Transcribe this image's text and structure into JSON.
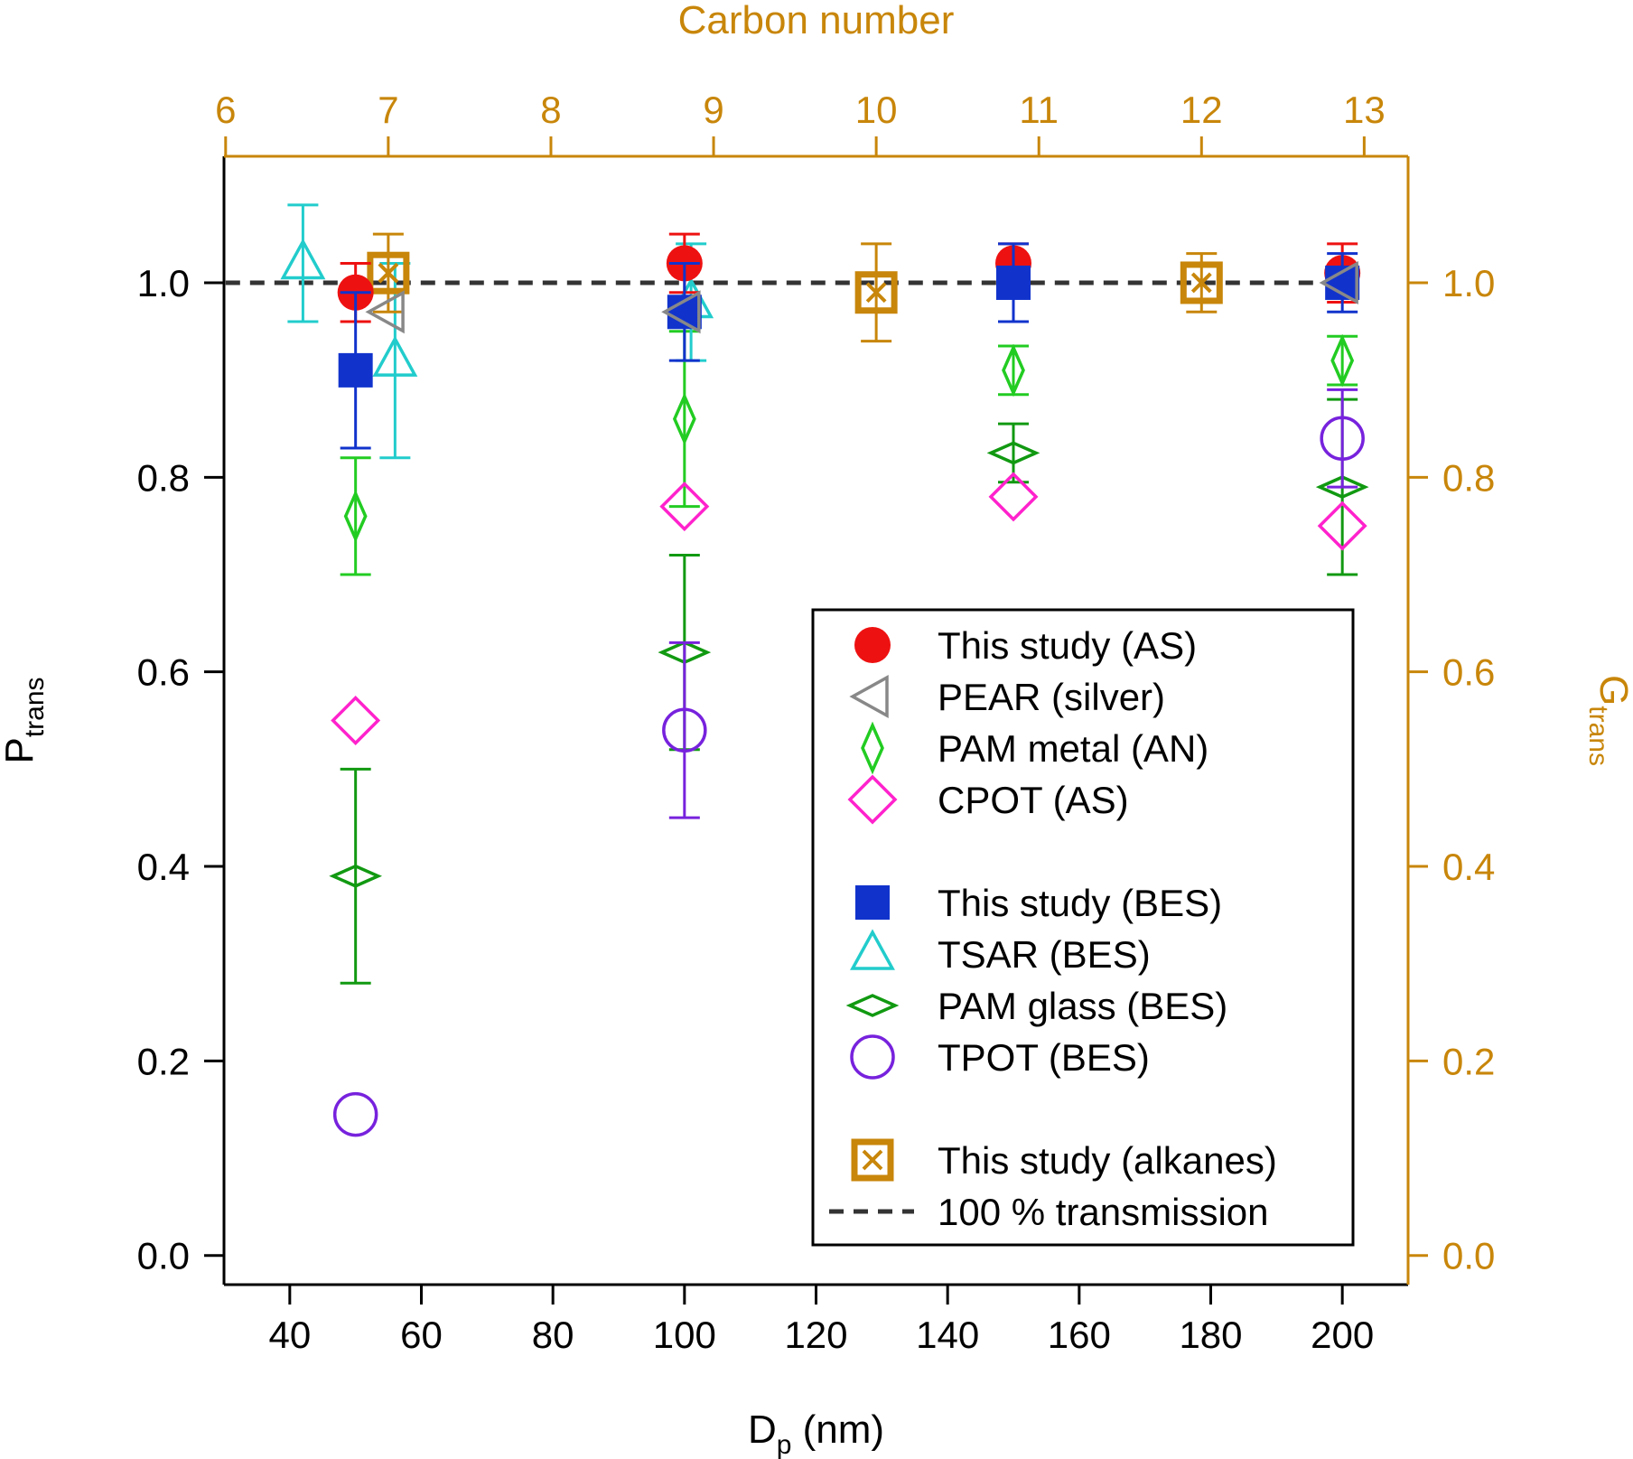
{
  "colors": {
    "axis_left": "#000000",
    "axis_right": "#C8860A",
    "legend_border": "#000000"
  },
  "chart_data": {
    "type": "scatter",
    "x_axis": {
      "label_main": "D",
      "label_sub": "p",
      "label_tail": " (nm)",
      "range": [
        30,
        210
      ],
      "ticks": [
        40,
        60,
        80,
        100,
        120,
        140,
        160,
        180,
        200
      ],
      "tick_labels": [
        "40",
        "60",
        "80",
        "100",
        "120",
        "140",
        "160",
        "180",
        "200"
      ]
    },
    "x2_axis": {
      "label": "Carbon number",
      "range": [
        5.99,
        13.27
      ],
      "ticks": [
        6,
        7,
        8,
        9,
        10,
        11,
        12,
        13
      ],
      "tick_labels": [
        "6",
        "7",
        "8",
        "9",
        "10",
        "11",
        "12",
        "13"
      ]
    },
    "y_axis": {
      "label_main": "P",
      "label_sub": "trans",
      "range": [
        -0.03,
        1.13
      ],
      "ticks": [
        0.0,
        0.2,
        0.4,
        0.6,
        0.8,
        1.0
      ],
      "tick_labels": [
        "0.0",
        "0.2",
        "0.4",
        "0.6",
        "0.8",
        "1.0"
      ]
    },
    "y2_axis": {
      "label_main": "G",
      "label_sub": "trans",
      "range": [
        -0.03,
        1.13
      ],
      "ticks": [
        0.0,
        0.2,
        0.4,
        0.6,
        0.8,
        1.0
      ],
      "tick_labels": [
        "0.0",
        "0.2",
        "0.4",
        "0.6",
        "0.8",
        "1.0"
      ]
    },
    "reference_line": {
      "y": 1.0,
      "name": "100 % transmission",
      "color": "#333333"
    },
    "series": [
      {
        "name": "This study (AS)",
        "marker": "filled-circle",
        "color": "#EE1111",
        "x_axis": "x",
        "points": [
          {
            "x": 50,
            "y": 0.99,
            "err": 0.03
          },
          {
            "x": 100,
            "y": 1.02,
            "err": 0.03
          },
          {
            "x": 150,
            "y": 1.02,
            "err": 0.02
          },
          {
            "x": 200,
            "y": 1.01,
            "err": 0.03
          }
        ]
      },
      {
        "name": "PEAR (silver)",
        "marker": "open-triangle-left",
        "color": "#888888",
        "x_axis": "x",
        "points": [
          {
            "x": 55,
            "y": 0.97,
            "err": 0
          },
          {
            "x": 100,
            "y": 0.97,
            "err": 0
          },
          {
            "x": 200,
            "y": 1.0,
            "err": 0
          }
        ]
      },
      {
        "name": "PAM metal (AN)",
        "marker": "open-thin-diamond",
        "color": "#22CC22",
        "x_axis": "x",
        "points": [
          {
            "x": 50,
            "y": 0.76,
            "err": 0.06
          },
          {
            "x": 100,
            "y": 0.86,
            "err": 0.09
          },
          {
            "x": 150,
            "y": 0.91,
            "err": 0.025
          },
          {
            "x": 200,
            "y": 0.92,
            "err": 0.025
          }
        ]
      },
      {
        "name": "CPOT (AS)",
        "marker": "open-diamond",
        "color": "#FF22CC",
        "x_axis": "x",
        "points": [
          {
            "x": 50,
            "y": 0.55,
            "err": 0
          },
          {
            "x": 100,
            "y": 0.77,
            "err": 0
          },
          {
            "x": 150,
            "y": 0.78,
            "err": 0
          },
          {
            "x": 200,
            "y": 0.75,
            "err": 0
          }
        ]
      },
      {
        "name": "This study (BES)",
        "marker": "filled-square",
        "color": "#1133CC",
        "x_axis": "x",
        "points": [
          {
            "x": 50,
            "y": 0.91,
            "err": 0.08
          },
          {
            "x": 100,
            "y": 0.97,
            "err": 0.05
          },
          {
            "x": 150,
            "y": 1.0,
            "err": 0.04
          },
          {
            "x": 200,
            "y": 1.0,
            "err": 0.03
          }
        ]
      },
      {
        "name": "TSAR (BES)",
        "marker": "open-triangle-up",
        "color": "#22CCCC",
        "x_axis": "x",
        "points": [
          {
            "x": 42,
            "y": 1.02,
            "err": 0.06
          },
          {
            "x": 56,
            "y": 0.92,
            "err": 0.1
          },
          {
            "x": 101,
            "y": 0.98,
            "err": 0.06
          }
        ]
      },
      {
        "name": "PAM glass (BES)",
        "marker": "open-flat-diamond",
        "color": "#119911",
        "x_axis": "x",
        "points": [
          {
            "x": 50,
            "y": 0.39,
            "err": 0.11
          },
          {
            "x": 100,
            "y": 0.62,
            "err": 0.1
          },
          {
            "x": 150,
            "y": 0.825,
            "err": 0.03
          },
          {
            "x": 200,
            "y": 0.79,
            "err": 0.09
          }
        ]
      },
      {
        "name": "TPOT (BES)",
        "marker": "open-circle",
        "color": "#7722DD",
        "x_axis": "x",
        "points": [
          {
            "x": 50,
            "y": 0.145,
            "err": 0
          },
          {
            "x": 100,
            "y": 0.54,
            "err": 0.09
          },
          {
            "x": 200,
            "y": 0.84,
            "err": 0.05
          }
        ]
      },
      {
        "name": "This study (alkanes)",
        "marker": "boxed-x-square",
        "color": "#C8860A",
        "x_axis": "x2",
        "points": [
          {
            "x": 7,
            "y": 1.01,
            "err": 0.04
          },
          {
            "x": 10,
            "y": 0.99,
            "err": 0.05
          },
          {
            "x": 12,
            "y": 1.0,
            "err": 0.03
          }
        ]
      }
    ],
    "legend": {
      "placement": "lower-right",
      "groups": [
        [
          "This study (AS)",
          "PEAR (silver)",
          "PAM metal (AN)",
          "CPOT (AS)"
        ],
        [
          "This study (BES)",
          "TSAR (BES)",
          "PAM glass (BES)",
          "TPOT (BES)"
        ],
        [
          "This study (alkanes)",
          "100 % transmission"
        ]
      ]
    },
    "grid": false
  }
}
